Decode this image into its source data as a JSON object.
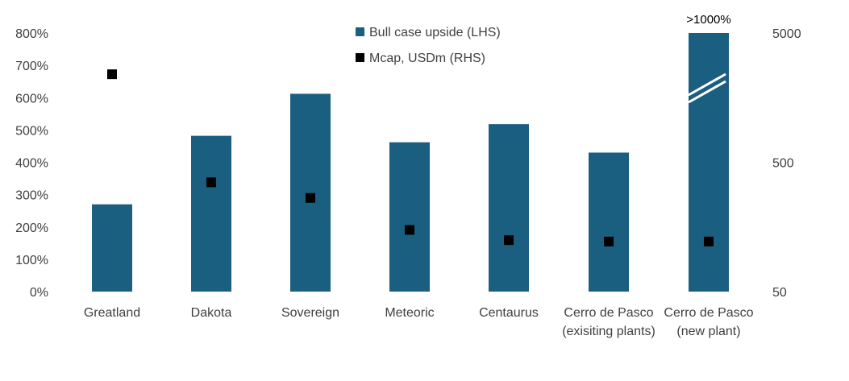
{
  "chart_data": {
    "type": "bar",
    "categories": [
      [
        "Greatland"
      ],
      [
        "Dakota"
      ],
      [
        "Sovereign"
      ],
      [
        "Meteoric"
      ],
      [
        "Centaurus"
      ],
      [
        "Cerro de Pasco",
        "(exisiting plants)"
      ],
      [
        "Cerro de Pasco",
        "(new plant)"
      ]
    ],
    "series": [
      {
        "name": "Bull case upside (LHS)",
        "kind": "bar",
        "axis": "left",
        "color": "#1a5e80",
        "values": [
          270,
          482,
          612,
          462,
          518,
          430,
          800
        ]
      },
      {
        "name": "Mcap, USDm (RHS)",
        "kind": "marker",
        "axis": "right",
        "color": "#000000",
        "values": [
          2400,
          350,
          265,
          150,
          125,
          122,
          122
        ]
      }
    ],
    "left_axis": {
      "min": 0,
      "max": 800,
      "step": 100,
      "ticks": [
        "0%",
        "100%",
        "200%",
        "300%",
        "400%",
        "500%",
        "600%",
        "700%",
        "800%"
      ]
    },
    "right_axis": {
      "scale": "log",
      "min": 50,
      "max": 5000,
      "ticks": [
        {
          "value": 50,
          "label": "50"
        },
        {
          "value": 500,
          "label": "500"
        },
        {
          "value": 5000,
          "label": "5000"
        }
      ]
    },
    "annotations": [
      {
        "category_index": 6,
        "text": ">1000%",
        "axis_break": true
      }
    ],
    "legend": {
      "position": "top-center"
    },
    "grid": false
  }
}
